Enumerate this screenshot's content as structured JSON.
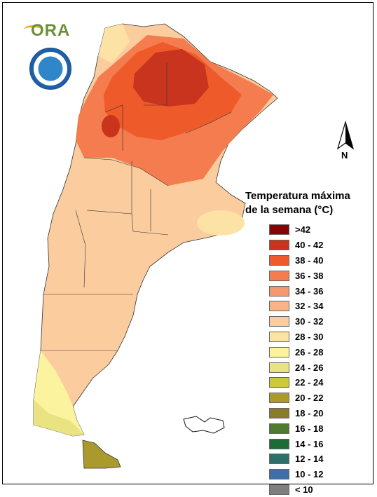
{
  "map": {
    "legend_title_line1": "Temperatura máxima",
    "legend_title_line2": "de la semana (°C)",
    "north_label": "N",
    "logo_text": "ORA",
    "legend": [
      {
        "label": ">42",
        "color": "#8b0000"
      },
      {
        "label": "40 - 42",
        "color": "#c8341e"
      },
      {
        "label": "38 - 40",
        "color": "#ee5a2a"
      },
      {
        "label": "36 - 38",
        "color": "#f47c4e"
      },
      {
        "label": "34 - 36",
        "color": "#f6986e"
      },
      {
        "label": "32 - 34",
        "color": "#f8b488"
      },
      {
        "label": "30 - 32",
        "color": "#fbcc9e"
      },
      {
        "label": "28 - 30",
        "color": "#fde2a6"
      },
      {
        "label": "26 - 28",
        "color": "#fcf39e"
      },
      {
        "label": "24 - 26",
        "color": "#e9e481"
      },
      {
        "label": "22 - 24",
        "color": "#ccc93a"
      },
      {
        "label": "20 - 22",
        "color": "#aa9a2e"
      },
      {
        "label": "18 - 20",
        "color": "#8a7a2c"
      },
      {
        "label": "16 - 18",
        "color": "#4f7a2f"
      },
      {
        "label": "14 - 16",
        "color": "#1e6b35"
      },
      {
        "label": "12 - 14",
        "color": "#2f6f6a"
      },
      {
        "label": "10 - 12",
        "color": "#3f6fa8"
      },
      {
        "label": "< 10",
        "color": "#7f7f7f"
      }
    ]
  }
}
